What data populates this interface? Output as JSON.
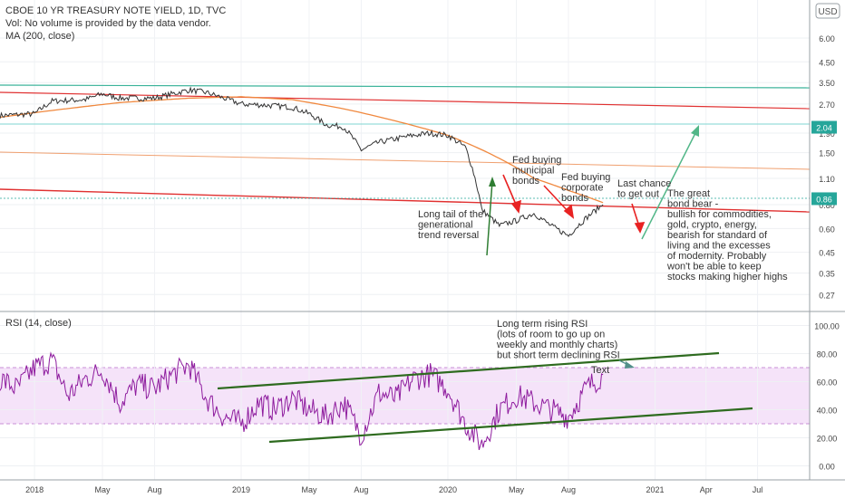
{
  "header": {
    "title": "CBOE 10 YR TREASURY NOTE YIELD, 1D, TVC",
    "vol_note": "Vol: No volume is provided by the data vendor.",
    "ma_label": "MA (200, close)",
    "currency": "USD"
  },
  "rsi_panel": {
    "label": "RSI (14, close)"
  },
  "annotations": {
    "long_tail": [
      "Long tail of the",
      "generational",
      "trend reversal"
    ],
    "fed_muni": [
      "Fed buying",
      "municipal",
      "bonds"
    ],
    "fed_corp": [
      "Fed buying",
      "corporate",
      "bonds"
    ],
    "last_chance": [
      "Last chance",
      "to get out"
    ],
    "bond_bear": [
      "The great",
      "bond bear -",
      "bullish for commodities,",
      "gold, crypto, energy,",
      "bearish for standard of",
      "living and the excesses",
      "of modernity.  Probably",
      "won't be able to keep",
      "stocks making higher highs"
    ],
    "rsi_note": [
      "Long term rising RSI",
      "(lots of room to go up on",
      "weekly and monthly charts)",
      "but short term declining RSI"
    ],
    "text_label": "Text"
  },
  "colors": {
    "price": "#333333",
    "ma": "#f0883e",
    "rsi": "#8e1c9e",
    "rsi_band": "#f2dcf7",
    "green_line": "#2e6b1f",
    "red_line": "#e03030",
    "teal_line": "#3bb39a",
    "price_badge": "#26a69a",
    "cyan_line": "#7fd6d0",
    "arrow_red": "#e82222",
    "arrow_green": "#52b788"
  },
  "chart_data": [
    {
      "type": "line",
      "title": "CBOE 10 YR TREASURY NOTE YIELD, 1D, TVC",
      "y_scale": "log",
      "y_ticks": [
        6.0,
        4.5,
        3.5,
        2.7,
        1.9,
        1.5,
        1.1,
        0.8,
        0.6,
        0.45,
        0.35,
        0.27
      ],
      "y_tick_labels": [
        "6.00",
        "4.50",
        "3.50",
        "2.70",
        "1.90",
        "1.50",
        "1.10",
        "0.80",
        "0.60",
        "0.45",
        "0.35",
        "0.27"
      ],
      "x_tick_labels": [
        "2018",
        "May",
        "Aug",
        "2019",
        "May",
        "Aug",
        "2020",
        "May",
        "Aug",
        "2021",
        "Apr",
        "Jul"
      ],
      "x_tick_dates": [
        "2018-01",
        "2018-05",
        "2018-08",
        "2019-01",
        "2019-05",
        "2019-08",
        "2020-01",
        "2020-05",
        "2020-08",
        "2021-01",
        "2021-04",
        "2021-07"
      ],
      "y_range": [
        0.22,
        9.5
      ],
      "series": [
        {
          "x": [
            "2017-11",
            "2018-01",
            "2018-02",
            "2018-04",
            "2018-05",
            "2018-06",
            "2018-08",
            "2018-10",
            "2018-11",
            "2019-01",
            "2019-02",
            "2019-04",
            "2019-05",
            "2019-06",
            "2019-07",
            "2019-08",
            "2019-09",
            "2019-11",
            "2019-12",
            "2020-01",
            "2020-02",
            "2020-03",
            "2020-04",
            "2020-05",
            "2020-06",
            "2020-07",
            "2020-08",
            "2020-09",
            "2020-10"
          ],
          "values": [
            2.35,
            2.4,
            2.8,
            2.85,
            3.05,
            2.9,
            2.9,
            3.2,
            3.1,
            2.7,
            2.68,
            2.6,
            2.4,
            2.1,
            2.05,
            1.55,
            1.7,
            1.85,
            1.9,
            1.85,
            1.6,
            0.75,
            0.62,
            0.66,
            0.72,
            0.62,
            0.55,
            0.68,
            0.8
          ]
        },
        {
          "name": "MA (200, close)",
          "x": [
            "2017-11",
            "2018-02",
            "2018-06",
            "2018-10",
            "2019-01",
            "2019-04",
            "2019-07",
            "2019-10",
            "2020-01",
            "2020-04",
            "2020-06",
            "2020-08",
            "2020-10"
          ],
          "values": [
            2.3,
            2.5,
            2.75,
            2.9,
            2.95,
            2.85,
            2.55,
            2.2,
            1.85,
            1.4,
            1.1,
            0.95,
            0.82
          ]
        }
      ],
      "reference_values": [
        {
          "label": "2.04",
          "value": 2.04
        },
        {
          "label": "0.86",
          "value": 0.86
        }
      ]
    },
    {
      "type": "line",
      "title": "RSI (14, close)",
      "y_ticks": [
        100,
        80,
        60,
        40,
        20,
        0
      ],
      "y_tick_labels": [
        "100.00",
        "80.00",
        "60.00",
        "40.00",
        "20.00",
        "0.00"
      ],
      "y_range": [
        -10,
        110
      ],
      "band": [
        30,
        70
      ],
      "series": [
        {
          "x": [
            "2017-11",
            "2017-12",
            "2018-01",
            "2018-02",
            "2018-03",
            "2018-04",
            "2018-05",
            "2018-06",
            "2018-07",
            "2018-08",
            "2018-09",
            "2018-10",
            "2018-11",
            "2018-12",
            "2019-01",
            "2019-02",
            "2019-03",
            "2019-04",
            "2019-05",
            "2019-06",
            "2019-07",
            "2019-08",
            "2019-09",
            "2019-10",
            "2019-11",
            "2019-12",
            "2020-01",
            "2020-02",
            "2020-03",
            "2020-04",
            "2020-05",
            "2020-06",
            "2020-07",
            "2020-08",
            "2020-09",
            "2020-10"
          ],
          "values": [
            62,
            55,
            70,
            75,
            50,
            62,
            68,
            45,
            58,
            55,
            65,
            72,
            48,
            35,
            30,
            45,
            40,
            48,
            40,
            35,
            45,
            22,
            52,
            48,
            62,
            65,
            55,
            30,
            15,
            40,
            50,
            45,
            40,
            35,
            55,
            65
          ]
        }
      ]
    }
  ]
}
